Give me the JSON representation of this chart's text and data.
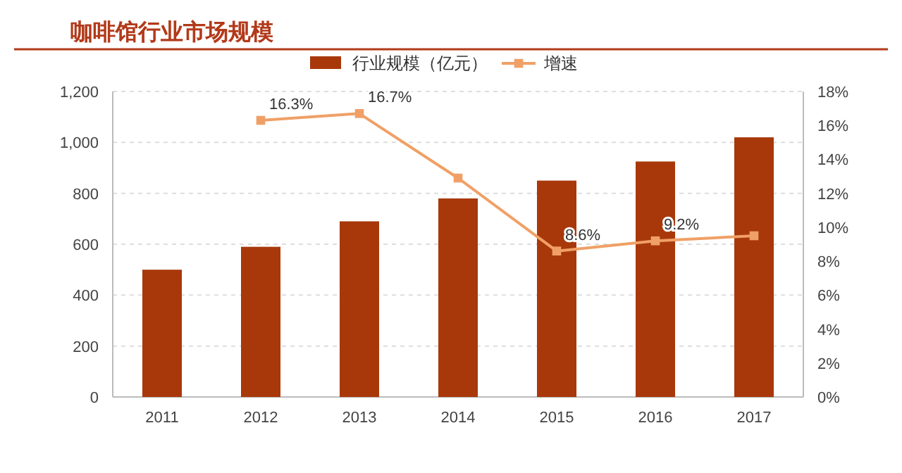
{
  "chart_data": {
    "type": "bar",
    "title": "咖啡馆行业市场规模",
    "categories": [
      "2011",
      "2012",
      "2013",
      "2014",
      "2015",
      "2016",
      "2017"
    ],
    "series": [
      {
        "name": "行业规模（亿元）",
        "color": "#a8380a",
        "values": [
          500,
          590,
          690,
          780,
          850,
          925,
          1020
        ]
      },
      {
        "name": "增速",
        "type": "line",
        "axis": "y2",
        "color": "#f0a066",
        "marker": "square",
        "values": [
          null,
          16.3,
          16.7,
          12.9,
          8.6,
          9.2,
          9.5
        ],
        "value_labels": [
          null,
          "16.3%",
          "16.7%",
          null,
          "8.6%",
          "9.2%",
          null
        ]
      }
    ],
    "ylim": [
      0,
      1200
    ],
    "yticks": [
      0,
      {
        "value": 200,
        "label": "200"
      },
      400,
      600,
      800,
      {
        "value": 1000,
        "label": "1,000"
      },
      {
        "value": 1200,
        "label": "1,200"
      }
    ],
    "y2lim": [
      0,
      18
    ],
    "y2ticks": [
      {
        "value": 0,
        "label": "0%"
      },
      {
        "value": 2,
        "label": "2%"
      },
      {
        "value": 4,
        "label": "4%"
      },
      {
        "value": 6,
        "label": "6%"
      },
      {
        "value": 8,
        "label": "8%"
      },
      {
        "value": 10,
        "label": "10%"
      },
      {
        "value": 12,
        "label": "12%"
      },
      {
        "value": 14,
        "label": "14%"
      },
      {
        "value": 16,
        "label": "16%"
      },
      {
        "value": 18,
        "label": "18%"
      }
    ],
    "grid": "y",
    "legend": "top"
  }
}
